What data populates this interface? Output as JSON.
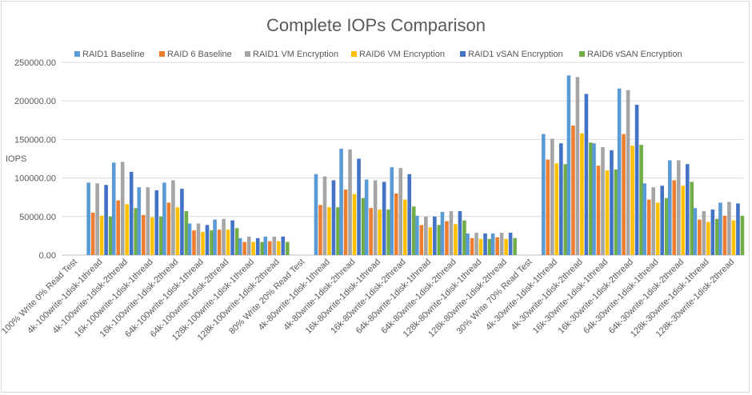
{
  "chart_data": {
    "type": "bar",
    "title": "Complete IOPs Comparison",
    "xlabel": "",
    "ylabel": "IOPS",
    "ylim": [
      0,
      250000
    ],
    "yticks": [
      "0.00",
      "50000.00",
      "100000.00",
      "150000.00",
      "200000.00",
      "250000.00"
    ],
    "ytick_values": [
      0,
      50000,
      100000,
      150000,
      200000,
      250000
    ],
    "grid": true,
    "legend_position": "top",
    "categories": [
      "100% Write 0% Read Test",
      "4k-100write-1disk-1thread",
      "4k-100write-1disk-2thread",
      "16k-100write-1disk-1thread",
      "16k-100write-1disk-2thread",
      "64k-100write-1disk-1thread",
      "64k-100write-1disk-2thread",
      "128k-100write-1disk-1thread",
      "128k-100write-1disk-2thread",
      "80% Write 20% Read Test",
      "4k-80write-1disk-1thread",
      "4k-80write-1disk-2thread",
      "16k-80write-1disk-1thread",
      "16k-80write-1disk-2thread",
      "64k-80write-1disk-1thread",
      "64k-80write-1disk-2thread",
      "128k-80write-1disk-1thread",
      "128k-80write-1disk-2thread",
      "30% Write 70% Read Test",
      "4k-30write-1disk-1thread",
      "4k-30write-1disk-2thread",
      "16k-30write-1disk-1thread",
      "16k-30write-1disk-2thread",
      "64k-30write-1disk-1thread",
      "64k-30write-1disk-2thread",
      "128k-30write-1disk-1thread",
      "128k-30write-1disk-2thread"
    ],
    "series": [
      {
        "name": "RAID1 Baseline",
        "color": "#5b9bd5",
        "values": [
          null,
          94000,
          120000,
          88000,
          94000,
          41000,
          46000,
          22000,
          24000,
          null,
          105000,
          138000,
          98000,
          114000,
          51000,
          56000,
          28000,
          28000,
          null,
          157000,
          233000,
          145000,
          216000,
          93000,
          123000,
          61000,
          68000
        ]
      },
      {
        "name": "RAID 6 Baseline",
        "color": "#ed7d31",
        "values": [
          null,
          55000,
          71000,
          52000,
          68000,
          32000,
          33000,
          17000,
          18000,
          null,
          65000,
          85000,
          61000,
          80000,
          39000,
          44000,
          22000,
          23000,
          null,
          124000,
          168000,
          116000,
          157000,
          72000,
          97000,
          46000,
          51000
        ]
      },
      {
        "name": "RAID1 VM Encryption",
        "color": "#a5a5a5",
        "values": [
          null,
          93000,
          121000,
          88000,
          97000,
          41000,
          47000,
          24000,
          24000,
          null,
          102000,
          137000,
          97000,
          113000,
          50000,
          57000,
          29000,
          29000,
          null,
          151000,
          231000,
          140000,
          214000,
          88000,
          123000,
          57000,
          69000
        ]
      },
      {
        "name": "RAID6 VM Encryption",
        "color": "#ffc000",
        "values": [
          null,
          51000,
          66000,
          49000,
          62000,
          30000,
          33000,
          17000,
          18000,
          null,
          62000,
          79000,
          59000,
          72000,
          36000,
          40000,
          21000,
          21000,
          null,
          119000,
          158000,
          110000,
          142000,
          68000,
          90000,
          43000,
          45000
        ]
      },
      {
        "name": "RAID1 vSAN Encryption",
        "color": "#4472c4",
        "values": [
          null,
          91000,
          108000,
          84000,
          86000,
          39000,
          45000,
          22000,
          24000,
          null,
          97000,
          125000,
          95000,
          105000,
          50000,
          57000,
          28000,
          29000,
          null,
          145000,
          209000,
          136000,
          195000,
          90000,
          118000,
          59000,
          67000
        ]
      },
      {
        "name": "RAID6 vSAN Encryption",
        "color": "#70ad47",
        "values": [
          null,
          50000,
          61000,
          50000,
          57000,
          32000,
          35000,
          17000,
          17000,
          null,
          62000,
          74000,
          59000,
          63000,
          39000,
          45000,
          21000,
          22000,
          null,
          118000,
          146000,
          111000,
          143000,
          74000,
          95000,
          47000,
          51000
        ]
      }
    ]
  }
}
